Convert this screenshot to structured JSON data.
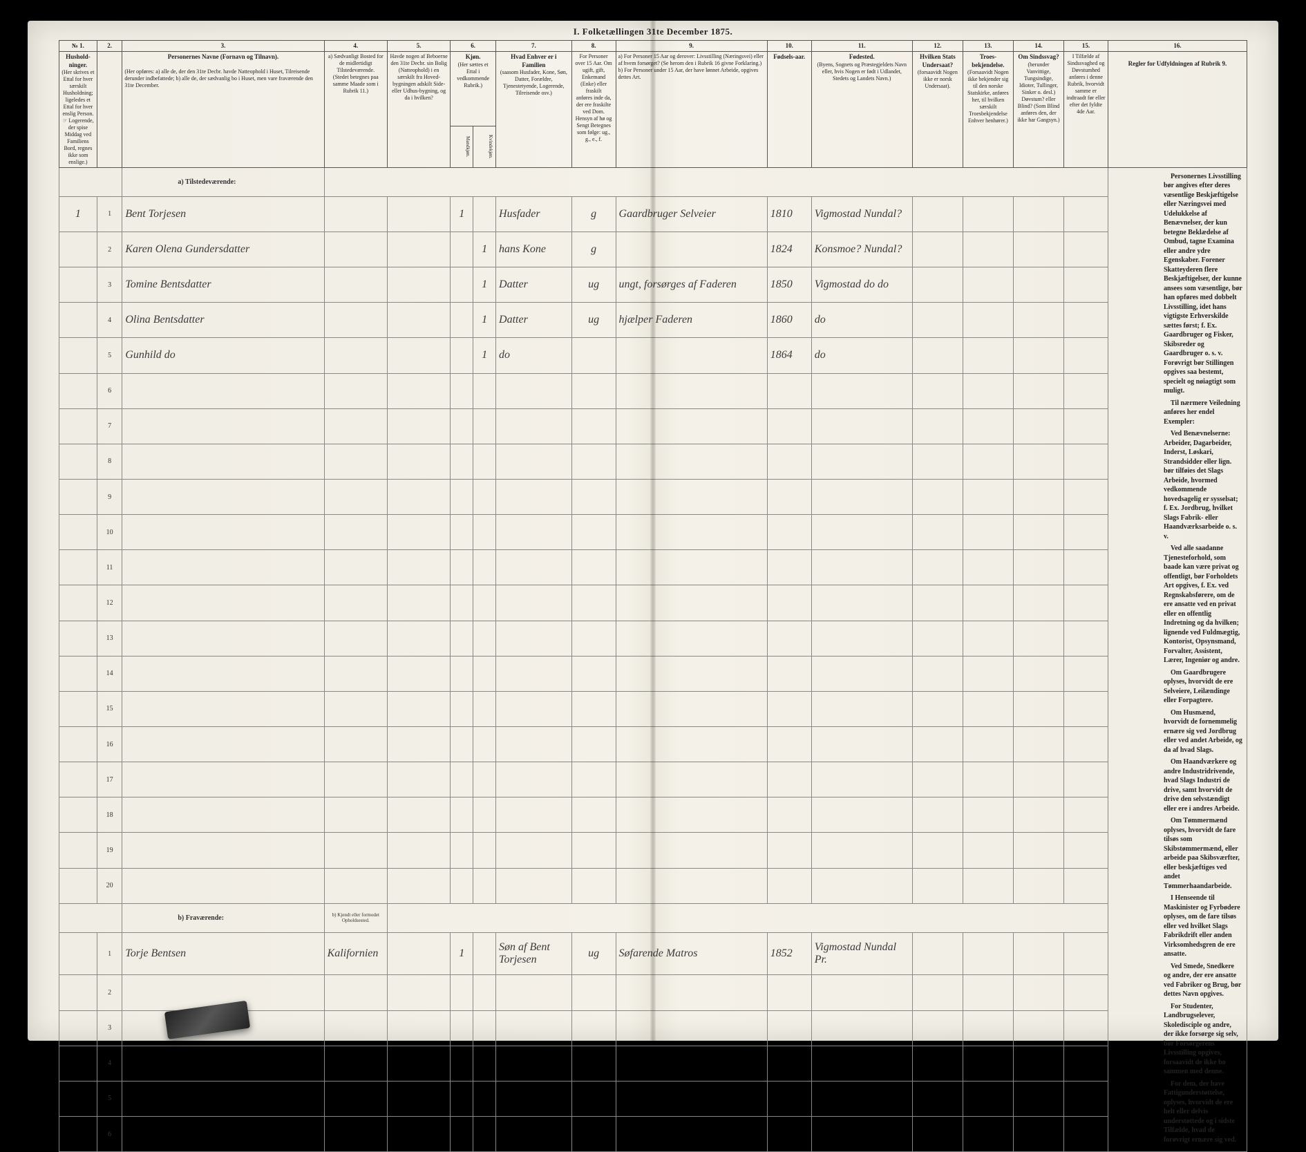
{
  "header": {
    "title": "I. Folketællingen 31te December 1875."
  },
  "columns": {
    "c1": {
      "num": "№ 1.",
      "title": "Hushold-\nninger.",
      "sub": "(Her skrives et Ettal for hver særskilt Husholdning; ligeledes et Ettal for hver enslig Person. ☞ Logerende, der spise Middag ved Familiens Bord, regnes ikke som enslige.)"
    },
    "c2": {
      "num": "2."
    },
    "c3": {
      "num": "3.",
      "title": "Personernes Navne (Fornavn og Tilnavn).",
      "sub": "(Her opføres:\na) alle de, der den 31te Decbr. havde Natteophold i Huset, Tilreisende derunder indbefattede;\nb) alle de, der sædvanlig bo i Huset, men vare fraværende den 31te December."
    },
    "c4": {
      "num": "4.",
      "title": "a) Sædvanligt Bosted for de midlertidigt Tilstedeværende.",
      "sub": "(Stedet betegnes paa samme Maade som i Rubrik 11.)"
    },
    "c5": {
      "num": "5.",
      "title": "Havde nogen af Beboerne den 31te Decbr. sin Bolig (Natteophold) i en særskilt fra Hoved-bygningen adskilt Side- eller Udhus-bygning, og da i hvilken?"
    },
    "c6": {
      "num": "6.",
      "title": "Kjøn.",
      "sub": "(Her sættes et Ettal i vedkommende Rubrik.)",
      "c6a": "Mandkjøn.",
      "c6b": "Kvindekjøn."
    },
    "c7": {
      "num": "7.",
      "title": "Hvad Enhver er i Familien",
      "sub": "(saasom Husfader, Kone, Søn, Datter, Forældre, Tjenestetyende, Logerende, Tilreisende osv.)"
    },
    "c8": {
      "num": "8.",
      "title": "For Personer over 15 Aar. Om ugift, gift, Enkemand (Enke) eller fraskilt",
      "sub": "anføres inde da, der ere fraskilte ved Dom. Hensyn af hø og Sengt Betegnes som følge: ug., g., e., f."
    },
    "c9": {
      "num": "9.",
      "title": "a) For Personer 15 Aar og derover: Livsstilling (Næringsvei) eller af hvem forsørget? (Se herom den i Rubrik 16 givne Forklaring.)\nb) For Personer under 15 Aar, der have lønnet Arbeide, opgives dettes Art."
    },
    "c10": {
      "num": "10.",
      "title": "Fødsels-aar."
    },
    "c11": {
      "num": "11.",
      "title": "Fødested.",
      "sub": "(Byens, Sognets og Præstegjeldets Navn eller, hvis Nogen er født i Udlandet, Stedets og Landets Navn.)"
    },
    "c12": {
      "num": "12.",
      "title": "Hvilken Stats Undersaat?",
      "sub": "(forsaavidt Nogen ikke er norsk Undersaat)."
    },
    "c13": {
      "num": "13.",
      "title": "Troes-bekjendelse.",
      "sub": "(Forsaavidt Nogen ikke bekjender sig til den norske Statskirke, anføres her, til hvilken særskilt Troesbekjendelse Enhver henhører.)"
    },
    "c14": {
      "num": "14.",
      "title": "Om Sindssvag?",
      "sub": "(herunder Vanvittige, Tungsindige, Idioter, Tullinger, Sinker o. desl.) Døvstum? eller Blind? (Som Blind anføres den, der ikke har Gangsyn.)"
    },
    "c15": {
      "num": "15.",
      "title": "I Tilfælde af Sindssvaghed og Døvstumhed anføres i denne Rubrik, hvorvidt samme er indtraadt før eller efter det fyldte 4de Aar."
    },
    "c16": {
      "num": "16.",
      "title": "Regler for Udfyldningen\naf\nRubrik 9."
    }
  },
  "sections": {
    "present": "a) Tilstedeværende:",
    "absent": "b) Fraværende:",
    "absent_col4": "b) Kjendt eller formodet Opholdsested."
  },
  "rows_present": [
    {
      "hh": "1",
      "n": "1",
      "name": "Bent Torjesen",
      "c6a": "1",
      "c6b": "",
      "c7": "Husfader",
      "c8": "g",
      "c9": "Gaardbruger Selveier",
      "c10": "1810",
      "c11": "Vigmostad Nundal?"
    },
    {
      "hh": "",
      "n": "2",
      "name": "Karen Olena Gundersdatter",
      "c6a": "",
      "c6b": "1",
      "c7": "hans Kone",
      "c8": "g",
      "c9": "",
      "c10": "1824",
      "c11": "Konsmoe? Nundal?"
    },
    {
      "hh": "",
      "n": "3",
      "name": "Tomine Bentsdatter",
      "c6a": "",
      "c6b": "1",
      "c7": "Datter",
      "c8": "ug",
      "c9": "ungt, forsørges af Faderen",
      "c10": "1850",
      "c11": "Vigmostad do do"
    },
    {
      "hh": "",
      "n": "4",
      "name": "Olina Bentsdatter",
      "c6a": "",
      "c6b": "1",
      "c7": "Datter",
      "c8": "ug",
      "c9": "hjælper Faderen",
      "c10": "1860",
      "c11": "do"
    },
    {
      "hh": "",
      "n": "5",
      "name": "Gunhild     do",
      "c6a": "",
      "c6b": "1",
      "c7": "do",
      "c8": "",
      "c9": "",
      "c10": "1864",
      "c11": "do"
    }
  ],
  "rows_absent": [
    {
      "n": "1",
      "name": "Torje Bentsen",
      "c4": "Kalifornien",
      "c6a": "1",
      "c6b": "",
      "c7": "Søn af Bent Torjesen",
      "c8": "ug",
      "c9": "Søfarende Matros",
      "c10": "1852",
      "c11": "Vigmostad Nundal Pr."
    }
  ],
  "empty_present_rows": [
    6,
    7,
    8,
    9,
    10,
    11,
    12,
    13,
    14,
    15,
    16,
    17,
    18,
    19,
    20
  ],
  "empty_absent_rows": [
    2,
    3,
    4,
    5,
    6
  ],
  "instructions": {
    "p1": "Personernes Livsstilling bør angives efter deres væsentlige Beskjæftigelse eller Næringsvei med Udelukkelse af Benævnelser, der kun betegne Beklædelse af Ombud, tagne Examina eller andre ydre Egenskaber. Forener Skatteyderen flere Beskjæftigelser, der kunne ansees som væsentlige, bør han opføres med dobbelt Livsstilling, idet hans vigtigste Erhverskilde sættes først; f. Ex. Gaardbruger og Fisker, Skibsreder og Gaardbruger o. s. v. Forøvrigt bør Stillingen opgives saa bestemt, specielt og nøiagtigt som muligt.",
    "p2": "Til nærmere Veiledning anføres her endel Exempler:",
    "p3": "Ved Benævnelserne: Arbeider, Dagarbeider, Inderst, Løskari, Strandsidder eller lign. bør tilføies det Slags Arbeide, hvormed vedkommende hovedsagelig er sysselsat; f. Ex. Jordbrug, hvilket Slags Fabrik- eller Haandværksarbeide o. s. v.",
    "p4": "Ved alle saadanne Tjenesteforhold, som baade kan være privat og offentligt, bør Forholdets Art opgives, f. Ex. ved Regnskabsførere, om de ere ansatte ved en privat eller en offentlig Indretning og da hvilken; lignende ved Fuldmægtig, Kontorist, Opsynsmand, Forvalter, Assistent, Lærer, Ingeniør og andre.",
    "p5": "Om Gaardbrugere oplyses, hvorvidt de ere Selveiere, Leilændinge eller Forpagtere.",
    "p6": "Om Husmænd, hvorvidt de fornemmelig ernære sig ved Jordbrug eller ved andet Arbeide, og da af hvad Slags.",
    "p7": "Om Haandværkere og andre Industridrivende, hvad Slags Industri de drive, samt hvorvidt de drive den selvstændigt eller ere i andres Arbeide.",
    "p8": "Om Tømmermænd oplyses, hvorvidt de fare tilsøs som Skibstømmermænd, eller arbeide paa Skibsværfter, eller beskjæftiges ved andet Tømmerhaandarbeide.",
    "p9": "I Henseende til Maskinister og Fyrbødere oplyses, om de fare tilsøs eller ved hvilket Slags Fabrikdrift eller anden Virksomhedsgren de ere ansatte.",
    "p10": "Ved Smede, Snedkere og andre, der ere ansatte ved Fabriker og Brug, bør dettes Navn opgives.",
    "p11": "For Studenter, Landbrugselever, Skoledisciple og andre, der ikke forsørge sig selv, bør Forsørgerens Livsstilling opgives, forsaavidt de ikke bo sammen med denne.",
    "p12": "For dem, der have Fattigunderstøttelse, oplyses, hvorvidt de ere helt eller delvis understøttede og i sidste Tilfælde, hvad de forøvrigt ernære sig ved."
  }
}
